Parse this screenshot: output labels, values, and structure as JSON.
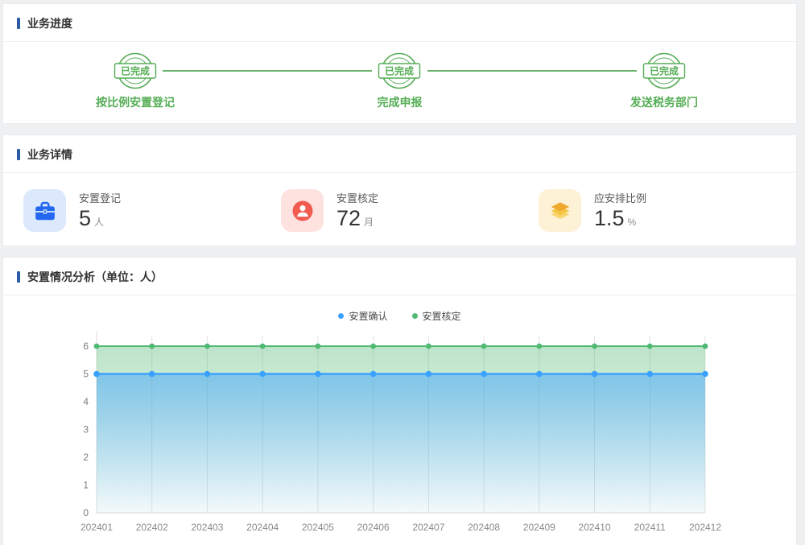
{
  "sections": {
    "progress": {
      "title": "业务进度",
      "steps": [
        {
          "status": "已完成",
          "label": "按比例安置登记"
        },
        {
          "status": "已完成",
          "label": "完成申报"
        },
        {
          "status": "已完成",
          "label": "发送税务部门"
        }
      ]
    },
    "details": {
      "title": "业务详情",
      "stats": [
        {
          "icon": "briefcase-icon",
          "label": "安置登记",
          "value": "5",
          "unit": "人"
        },
        {
          "icon": "user-icon",
          "label": "安置核定",
          "value": "72",
          "unit": "月"
        },
        {
          "icon": "layers-icon",
          "label": "应安排比例",
          "value": "1.5",
          "unit": "%"
        }
      ]
    },
    "analysis": {
      "title": "安置情况分析（单位：人）"
    }
  },
  "chart_data": {
    "type": "area",
    "title": "安置情况分析（单位：人）",
    "categories": [
      "202401",
      "202402",
      "202403",
      "202404",
      "202405",
      "202406",
      "202407",
      "202408",
      "202409",
      "202410",
      "202411",
      "202412"
    ],
    "series": [
      {
        "name": "安置确认",
        "values": [
          5,
          5,
          5,
          5,
          5,
          5,
          5,
          5,
          5,
          5,
          5,
          5
        ],
        "color": "#3aa1ff"
      },
      {
        "name": "安置核定",
        "values": [
          6,
          6,
          6,
          6,
          6,
          6,
          6,
          6,
          6,
          6,
          6,
          6
        ],
        "color": "#4fb873"
      }
    ],
    "xlabel": "",
    "ylabel": "",
    "ylim": [
      0,
      6
    ],
    "yticks": [
      0,
      1,
      2,
      3,
      4,
      5,
      6
    ],
    "legend_position": "top-center",
    "grid": "vertical-only"
  },
  "colors": {
    "accent": "#2b5aa7",
    "success_green": "#55ad55",
    "stat_blue": "#2468f2",
    "stat_red": "#f15b50",
    "stat_yellow": "#efa92f"
  }
}
